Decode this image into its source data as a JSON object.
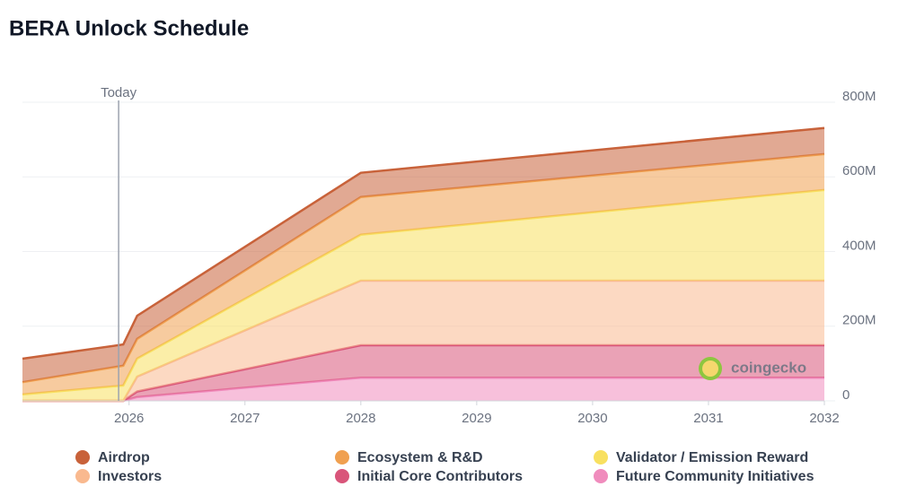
{
  "chart_data": {
    "type": "stacked_area",
    "title": "BERA Unlock Schedule",
    "x": [
      2025.08,
      2025.95,
      2026.07,
      2028.0,
      2032.0
    ],
    "xlim": [
      2025.08,
      2032
    ],
    "xticks": [
      2026,
      2027,
      2028,
      2029,
      2030,
      2031,
      2032
    ],
    "ylim": [
      0,
      800000000
    ],
    "yticks": [
      0,
      {
        "value": 200000000,
        "label": "200M"
      },
      {
        "value": 400000000,
        "label": "400M"
      },
      {
        "value": 600000000,
        "label": "600M"
      },
      {
        "value": 800000000,
        "label": "800M"
      }
    ],
    "grid": true,
    "today": {
      "x": 2025.91,
      "label": "Today"
    },
    "watermark": "coingecko",
    "series": [
      {
        "name": "Airdrop",
        "color": "#c8623a",
        "values": [
          63000000,
          57000000,
          62000000,
          65000000,
          70000000
        ]
      },
      {
        "name": "Ecosystem & R&D",
        "color": "#f0a050",
        "values": [
          33000000,
          53000000,
          53000000,
          101000000,
          96000000
        ]
      },
      {
        "name": "Validator / Emission Reward",
        "color": "#f8e060",
        "values": [
          17000000,
          41000000,
          48000000,
          123000000,
          243000000
        ]
      },
      {
        "name": "Investors",
        "color": "#f9b98f",
        "values": [
          0,
          0,
          40000000,
          173000000,
          173000000
        ]
      },
      {
        "name": "Initial Core Contributors",
        "color": "#d9557a",
        "values": [
          0,
          0,
          15000000,
          87000000,
          87000000
        ]
      },
      {
        "name": "Future Community Initiatives",
        "color": "#f08cbd",
        "values": [
          0,
          0,
          10000000,
          62000000,
          62000000
        ]
      }
    ]
  }
}
